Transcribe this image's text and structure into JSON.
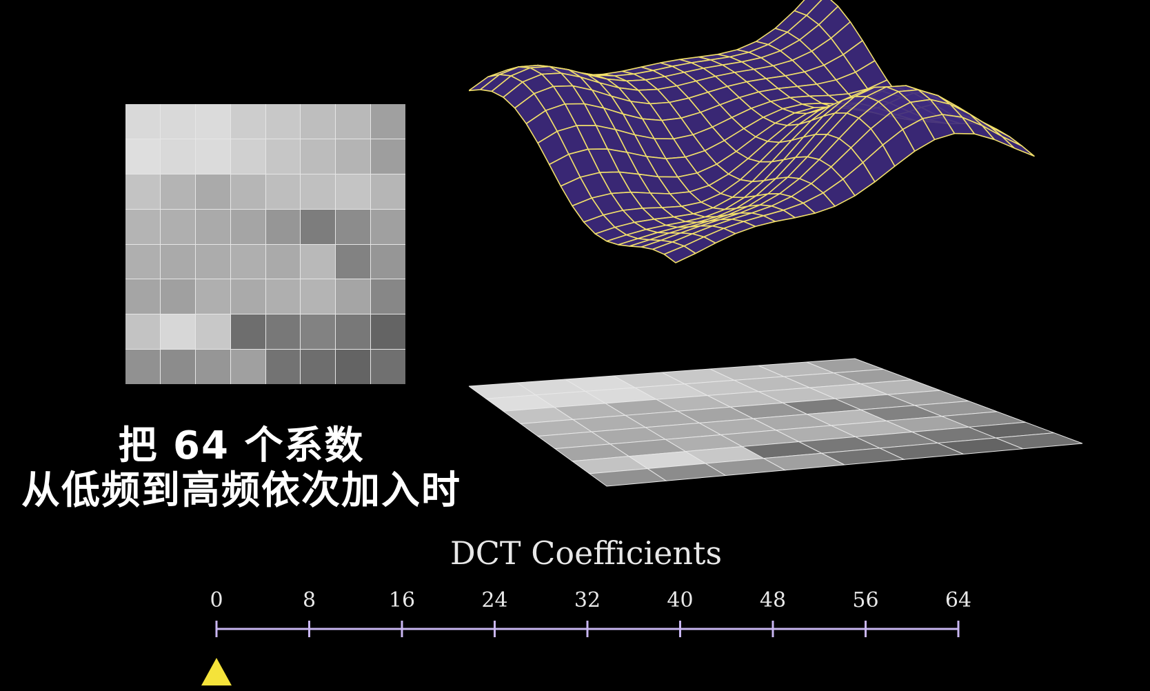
{
  "caption": {
    "line1": "把 64 个系数",
    "line2": "从低频到高频依次加入时"
  },
  "axis": {
    "title": "DCT Coefficients",
    "ticks": [
      "0",
      "8",
      "16",
      "24",
      "32",
      "40",
      "48",
      "56",
      "64"
    ],
    "marker_value": 0,
    "min": 0,
    "max": 64
  },
  "pixel_block": {
    "gray_levels": [
      [
        217,
        217,
        219,
        205,
        200,
        190,
        185,
        160
      ],
      [
        222,
        217,
        219,
        208,
        198,
        188,
        180,
        158
      ],
      [
        195,
        180,
        170,
        182,
        190,
        192,
        196,
        182
      ],
      [
        180,
        175,
        170,
        165,
        150,
        125,
        140,
        160
      ],
      [
        175,
        170,
        172,
        175,
        170,
        185,
        130,
        150
      ],
      [
        165,
        160,
        175,
        170,
        175,
        180,
        165,
        135
      ],
      [
        195,
        215,
        200,
        110,
        120,
        130,
        120,
        100
      ],
      [
        145,
        140,
        150,
        160,
        115,
        110,
        100,
        112
      ]
    ]
  },
  "colors": {
    "background": "#000000",
    "surface_fill": "#3e2a7e",
    "surface_wire": "#f2e06a",
    "axis_line": "#c9b6f2",
    "marker": "#f5e33a"
  }
}
